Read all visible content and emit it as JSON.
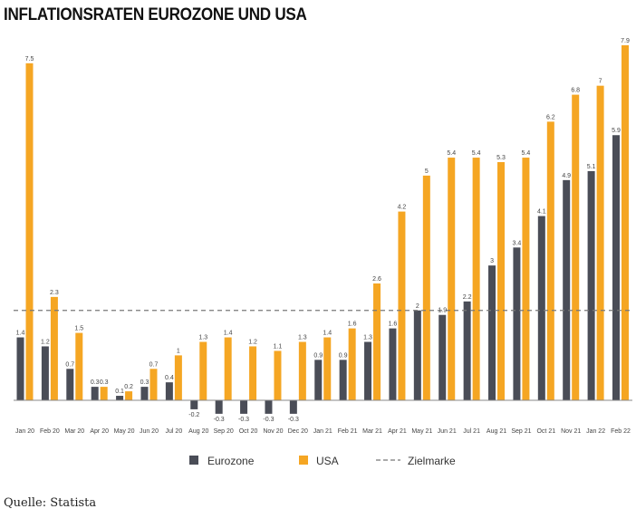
{
  "chart_data": {
    "type": "bar",
    "title": "INFLATIONSRATEN EUROZONE UND USA",
    "categories": [
      "Jan 20",
      "Feb 20",
      "Mar 20",
      "Apr 20",
      "May 20",
      "Jun 20",
      "Jul 20",
      "Aug 20",
      "Sep 20",
      "Oct 20",
      "Nov 20",
      "Dec 20",
      "Jan 21",
      "Feb 21",
      "Mar 21",
      "Apr 21",
      "May 21",
      "Jun 21",
      "Jul 21",
      "Aug 21",
      "Sep 21",
      "Oct 21",
      "Nov 21",
      "Jan 22",
      "Feb 22"
    ],
    "series": [
      {
        "name": "Eurozone",
        "color": "#4a4d57",
        "values": [
          1.4,
          1.2,
          0.7,
          0.3,
          0.1,
          0.3,
          0.4,
          -0.2,
          -0.3,
          -0.3,
          -0.3,
          -0.3,
          0.9,
          0.9,
          1.3,
          1.6,
          2,
          1.9,
          2.2,
          3,
          3.4,
          4.1,
          4.9,
          5.1,
          5.9
        ],
        "labels": [
          "1.4",
          "1.2",
          "0.7",
          "0.3",
          "0.1",
          "0.3",
          "0.4",
          "-0.2",
          "-0.3",
          "-0.3",
          "-0.3",
          "-0.3",
          "0.9",
          "0.9",
          "1.3",
          "1.6",
          "2",
          "1.9",
          "2.2",
          "3",
          "3.4",
          "4.1",
          "4.9",
          "5.1",
          "5.9"
        ]
      },
      {
        "name": "USA",
        "color": "#f5a623",
        "values": [
          7.5,
          2.3,
          1.5,
          0.3,
          0.2,
          0.7,
          1,
          1.3,
          1.4,
          1.2,
          1.1,
          1.3,
          1.4,
          1.6,
          2.6,
          4.2,
          5,
          5.4,
          5.4,
          5.3,
          5.4,
          6.2,
          6.8,
          7,
          7.9
        ],
        "labels": [
          "7.5",
          "2.3",
          "1.5",
          "0.3",
          "0.2",
          "0.7",
          "1",
          "1.3",
          "1.4",
          "1.2",
          "1.1",
          "1.3",
          "1.4",
          "1.6",
          "2.6",
          "4.2",
          "5",
          "5.4",
          "5.4",
          "5.3",
          "5.4",
          "6.2",
          "6.8",
          "7",
          "7.9"
        ]
      }
    ],
    "reference_line": {
      "name": "Zielmarke",
      "value": 2,
      "style": "dashed",
      "color": "#777777"
    },
    "ylim": [
      -0.3,
      7.9
    ],
    "grid": false,
    "legend": {
      "placement": "bottom-center",
      "items": [
        "Eurozone",
        "USA",
        "Zielmarke"
      ]
    }
  },
  "legend": {
    "eurozone": "Eurozone",
    "usa": "USA",
    "zielmarke": "Zielmarke"
  },
  "source": "Quelle: Statista"
}
